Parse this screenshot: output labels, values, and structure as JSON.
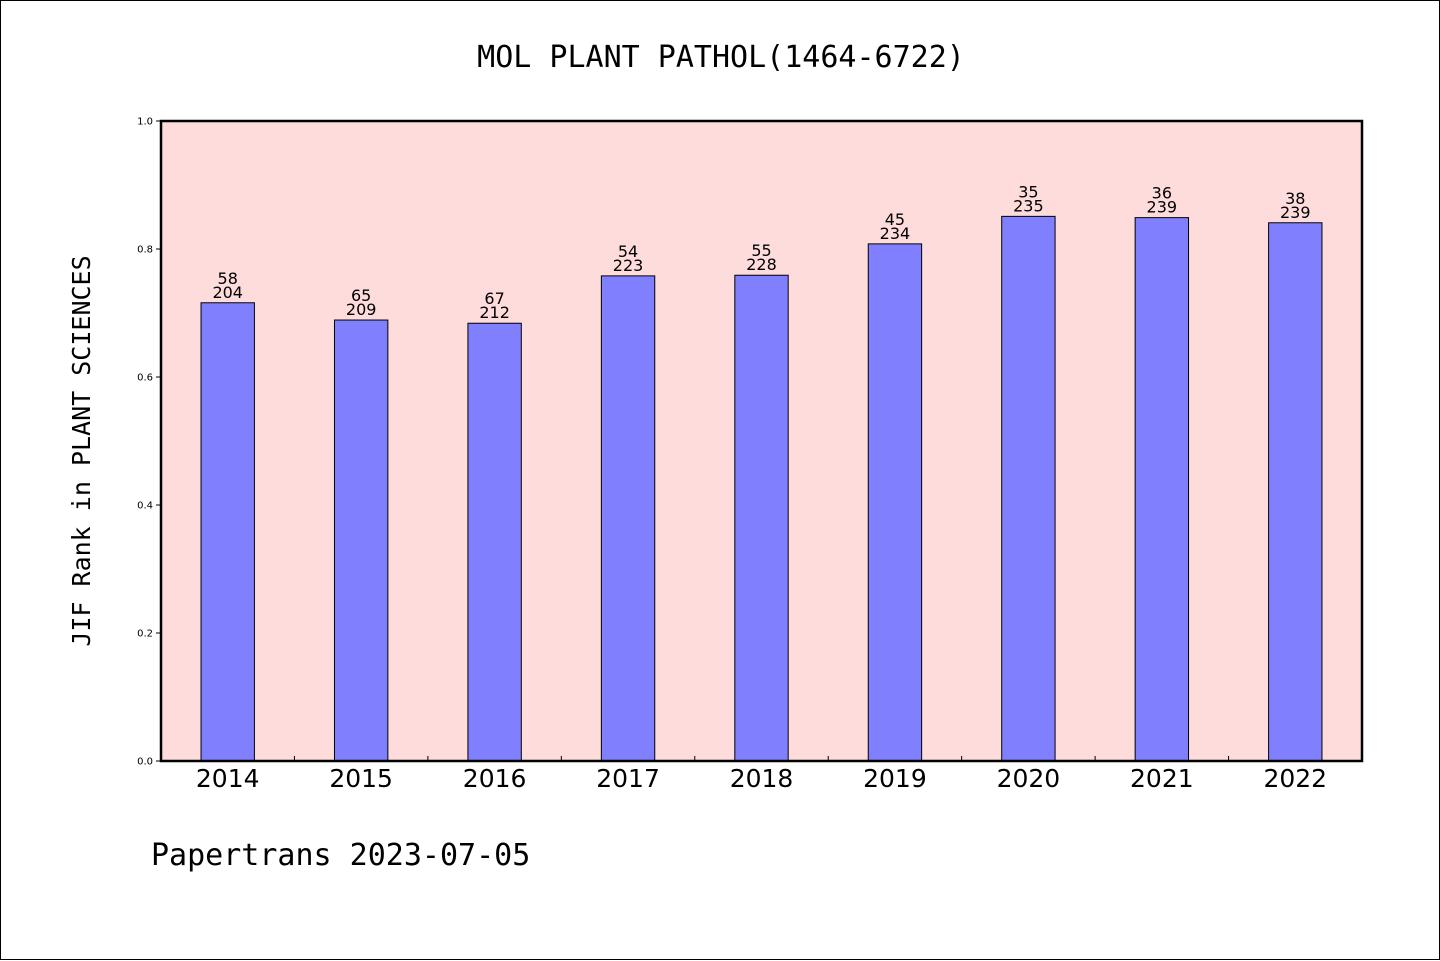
{
  "chart_data": {
    "type": "bar",
    "title": "MOL PLANT PATHOL(1464-6722)",
    "xlabel": "",
    "ylabel": "JIF Rank in PLANT SCIENCES",
    "ylim": [
      0,
      1.0
    ],
    "yticks": [
      "0.0",
      "0.2",
      "0.4",
      "0.6",
      "0.8",
      "1.0"
    ],
    "categories": [
      "2014",
      "2015",
      "2016",
      "2017",
      "2018",
      "2019",
      "2020",
      "2021",
      "2022"
    ],
    "values": [
      0.716,
      0.689,
      0.684,
      0.758,
      0.759,
      0.808,
      0.851,
      0.849,
      0.841
    ],
    "ranks": [
      "58",
      "65",
      "67",
      "54",
      "55",
      "45",
      "35",
      "36",
      "38"
    ],
    "totals": [
      "204",
      "209",
      "212",
      "223",
      "228",
      "234",
      "235",
      "239",
      "239"
    ],
    "colors": {
      "plot_background": "#fddcdb",
      "bar": "#8080ff",
      "bar_edge": "#000000"
    },
    "grid": false,
    "legend": "none"
  },
  "footer": "Papertrans 2023-07-05"
}
